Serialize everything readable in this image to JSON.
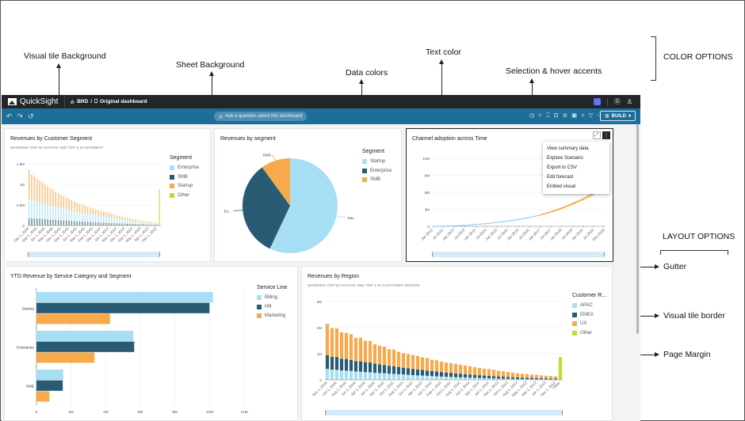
{
  "annotations": {
    "visual_tile_background": "Visual tile Background",
    "sheet_background": "Sheet Background",
    "data_colors": "Data colors",
    "text_color": "Text color",
    "selection_hover": "Selection & hover accents",
    "color_options": "COLOR OPTIONS",
    "layout_options": "LAYOUT OPTIONS",
    "gutter": "Gutter",
    "visual_tile_border": "Visual tile border",
    "page_margin": "Page Margin"
  },
  "app": {
    "name": "QuickSight",
    "breadcrumb_folder": "BRD",
    "breadcrumb_sep": "/",
    "dashboard_name": "Original dashboard",
    "ask_placeholder": "Ask a question about this dashboard",
    "build_label": "BUILD",
    "toolbar_icons": [
      "schedule-icon",
      "branch-icon",
      "bookmark-icon",
      "download-icon",
      "dataset-icon",
      "save-icon",
      "share-icon",
      "filter-icon",
      "alert-icon"
    ],
    "colors": {
      "topbar": "#232629",
      "toolbar": "#1d6f99",
      "accent": "#1d6f99"
    }
  },
  "tiles": {
    "segment_bar": {
      "title": "Revenues by Customer Segment",
      "subtitle": "SHOWING TOP 50 IN DATE AND TOP 4 IN SEGMENT",
      "legend_title": "Segment",
      "legend": [
        {
          "label": "Enterprise",
          "color": "#a6dff4"
        },
        {
          "label": "SMB",
          "color": "#2a5b74"
        },
        {
          "label": "Startup",
          "color": "#f7a94b"
        },
        {
          "label": "Other",
          "color": "#b6df2c"
        }
      ],
      "y_ticks": [
        "0",
        "0.5M",
        "1M",
        "1.5M"
      ],
      "x_labels": [
        "Dec 1, 2016",
        "Sep 1, 2016",
        "Jun 1, 2016",
        "Mar 1, 2016",
        "Dec 1, 2015",
        "Sep 1, 2015",
        "Jun 1, 2015",
        "Mar 1, 2015",
        "Feb 1, 2015",
        "Sep 1, 2014",
        "Jun 1, 2014",
        "Mar 1, 2014",
        "Dec 1, 2013",
        "Sep 1, 2013",
        "May 1, 2013",
        "Apr 1, 2013",
        "Dec 1, 2012"
      ]
    },
    "segment_pie": {
      "title": "Revenues by segment",
      "legend_title": "Segment",
      "legend": [
        {
          "label": "Startup",
          "color": "#a6dff4"
        },
        {
          "label": "Enterprise",
          "color": "#2a5b74"
        },
        {
          "label": "SMB",
          "color": "#f7a94b"
        }
      ],
      "slice_labels": [
        "Sta...",
        "En...",
        "SMB"
      ]
    },
    "channel_line": {
      "title": "Channel adoption across Time",
      "y_ticks": [
        "0",
        "3M",
        "6M",
        "9M",
        "12M"
      ],
      "x_labels": [
        "Jan 2012",
        "Jul 2012",
        "Jan 2013",
        "Jul 2013",
        "Jan 2014",
        "Jul 2014",
        "Jan 2015",
        "Jul 2015",
        "Jan 2016",
        "Jul 2016",
        "Jan 2017",
        "Jul 2017",
        "Jan 2018",
        "Jul 2018",
        "Jan 2019",
        "Jul 2019",
        "Dec 2019"
      ],
      "menu": [
        "View summary data",
        "Explore Scenario",
        "Export to CSV",
        "Edit forecast",
        "Embed visual"
      ]
    },
    "ytd_bar": {
      "title": "YTD Revenue by Service Category and Segment",
      "legend_title": "Service Line",
      "legend": [
        {
          "label": "Billing",
          "color": "#a6dff4"
        },
        {
          "label": "HR",
          "color": "#2a5b74"
        },
        {
          "label": "Marketing",
          "color": "#f7a94b"
        }
      ],
      "x_ticks": [
        "0",
        "2M",
        "4M",
        "6M",
        "8M",
        "10M",
        "12M"
      ]
    },
    "region_bar": {
      "title": "Revenues by Region",
      "subtitle": "SHOWING TOP 50 IN DATE AND TOP 4 IN CUSTOMER REGION",
      "legend_title": "Customer R...",
      "legend": [
        {
          "label": "APAC",
          "color": "#a6dff4"
        },
        {
          "label": "EMEA",
          "color": "#2a5b74"
        },
        {
          "label": "US",
          "color": "#f7a94b"
        },
        {
          "label": "Other",
          "color": "#b6df2c"
        }
      ],
      "y_ticks": [
        "0",
        "1M",
        "2M",
        "3M"
      ],
      "x_labels": [
        "Dec 1, 2016",
        "Oct 1, 2016",
        "Aug 1, 2016",
        "Jun 1, 2016",
        "Apr 1, 2016",
        "Jan 1, 2016",
        "Dec 1, 2015",
        "Oct 1, 2015",
        "Aug 1, 2015",
        "Jun 1, 2015",
        "Apr 1, 2015",
        "Jan 1, 2015",
        "Feb 1, 2015",
        "Oct 1, 2014",
        "Aug 1, 2014",
        "Jun 1, 2014",
        "Apr 1, 2014",
        "Jan 1, 2014",
        "Dec 1, 2013",
        "Oct 1, 2013",
        "Aug 1, 2013",
        "May 1, 2013",
        "Mar 1, 2013",
        "Jan 1, 2013",
        "Dec 1, 2012",
        "Other"
      ]
    }
  },
  "chart_data": [
    {
      "type": "bar",
      "title": "Revenues by Customer Segment",
      "stacked": true,
      "ylim": [
        0,
        1500000
      ],
      "series": [
        {
          "name": "SMB",
          "values": [
            180000,
            175000,
            172000,
            168000,
            165000,
            160000,
            155000,
            150000,
            145000,
            140000,
            136000,
            132000,
            128000,
            124000,
            120000,
            116000,
            112000,
            108000,
            104000,
            100000,
            96000,
            92000,
            88000,
            85000,
            82000,
            79000,
            76000,
            73000,
            70000,
            67000,
            64000,
            61000,
            58000,
            55000,
            52000,
            49000,
            46000,
            43000,
            40000,
            37000,
            35000,
            33000,
            31000,
            29000,
            27000,
            25000,
            23000,
            21000,
            19000,
            0
          ]
        },
        {
          "name": "Enterprise",
          "values": [
            450000,
            430000,
            420000,
            410000,
            400000,
            390000,
            370000,
            355000,
            345000,
            330000,
            315000,
            300000,
            290000,
            280000,
            270000,
            260000,
            250000,
            240000,
            232000,
            224000,
            216000,
            208000,
            200000,
            192000,
            184000,
            176000,
            168000,
            160000,
            152000,
            144000,
            136000,
            128000,
            120000,
            112000,
            104000,
            96000,
            88000,
            80000,
            72000,
            66000,
            60000,
            55000,
            50000,
            46000,
            42000,
            38000,
            34000,
            30000,
            27000,
            0
          ]
        },
        {
          "name": "Startup",
          "values": [
            720000,
            630000,
            610000,
            560000,
            540000,
            510000,
            470000,
            460000,
            420000,
            410000,
            370000,
            350000,
            330000,
            310000,
            290000,
            270000,
            250000,
            235000,
            220000,
            206000,
            194000,
            182000,
            172000,
            162000,
            152000,
            143000,
            134000,
            126000,
            118000,
            110000,
            103000,
            96000,
            89000,
            83000,
            77000,
            72000,
            66000,
            61000,
            56000,
            52000,
            48000,
            44000,
            40000,
            37000,
            34000,
            31000,
            28000,
            25000,
            22000,
            0
          ]
        },
        {
          "name": "Other",
          "values": [
            0,
            0,
            0,
            0,
            0,
            0,
            0,
            0,
            0,
            0,
            0,
            0,
            0,
            0,
            0,
            0,
            0,
            0,
            0,
            0,
            0,
            0,
            0,
            0,
            0,
            0,
            0,
            0,
            0,
            0,
            0,
            0,
            0,
            0,
            0,
            0,
            0,
            0,
            0,
            0,
            0,
            0,
            0,
            0,
            0,
            0,
            0,
            0,
            0,
            880000
          ]
        }
      ]
    },
    {
      "type": "pie",
      "title": "Revenues by segment",
      "categories": [
        "Startup",
        "Enterprise",
        "SMB"
      ],
      "values": [
        57,
        33,
        10
      ]
    },
    {
      "type": "line",
      "title": "Channel adoption across Time",
      "ylim": [
        0,
        12000000
      ],
      "x": [
        "Jan 2012",
        "Jul 2012",
        "Jan 2013",
        "Jul 2013",
        "Jan 2014",
        "Jul 2014",
        "Jan 2015",
        "Jul 2015",
        "Jan 2016",
        "Jul 2016",
        "Jan 2017",
        "Jul 2017",
        "Jan 2018",
        "Jul 2018",
        "Jan 2019",
        "Jul 2019",
        "Dec 2019"
      ],
      "series": [
        {
          "name": "Actual",
          "values": [
            0,
            20000,
            80000,
            180000,
            320000,
            480000,
            680000,
            920000,
            1200000,
            1550000,
            2000000,
            null,
            null,
            null,
            null,
            null,
            null
          ]
        },
        {
          "name": "Forecast",
          "values": [
            null,
            null,
            null,
            null,
            null,
            null,
            null,
            null,
            null,
            null,
            2000000,
            2550000,
            3200000,
            3950000,
            4800000,
            5800000,
            6900000
          ]
        }
      ]
    },
    {
      "type": "bar",
      "orientation": "horizontal",
      "title": "YTD Revenue by Service Category and Segment",
      "categories": [
        "Startup",
        "Enterprise",
        "SMB"
      ],
      "xlim": [
        0,
        12000000
      ],
      "series": [
        {
          "name": "Billing",
          "values": [
            10200000,
            5600000,
            1550000
          ]
        },
        {
          "name": "HR",
          "values": [
            10000000,
            5650000,
            1520000
          ]
        },
        {
          "name": "Marketing",
          "values": [
            4250000,
            3350000,
            750000
          ]
        }
      ]
    },
    {
      "type": "bar",
      "title": "Revenues by Region",
      "stacked": true,
      "ylim": [
        0,
        3000000
      ],
      "series": [
        {
          "name": "APAC",
          "values": [
            420000,
            390000,
            385000,
            360000,
            350000,
            340000,
            320000,
            310000,
            295000,
            290000,
            270000,
            260000,
            250000,
            235000,
            225000,
            215000,
            205000,
            195000,
            180000,
            170000,
            165000,
            155000,
            145000,
            135000,
            125000,
            115000,
            110000,
            100000,
            95000,
            88000,
            82000,
            76000,
            70000,
            64000,
            58000,
            52000,
            48000,
            44000,
            40000,
            36000,
            33000,
            30000,
            28000,
            26000,
            24000,
            22000,
            20000,
            18000,
            15000,
            0
          ]
        },
        {
          "name": "EMEA",
          "values": [
            530000,
            490000,
            490000,
            450000,
            450000,
            420000,
            400000,
            400000,
            380000,
            380000,
            350000,
            330000,
            320000,
            300000,
            300000,
            280000,
            260000,
            255000,
            240000,
            225000,
            215000,
            200000,
            195000,
            185000,
            175000,
            165000,
            160000,
            150000,
            140000,
            130000,
            122000,
            115000,
            108000,
            100000,
            94000,
            88000,
            82000,
            76000,
            70000,
            65000,
            60000,
            56000,
            52000,
            48000,
            45000,
            42000,
            39000,
            36000,
            30000,
            0
          ]
        },
        {
          "name": "US",
          "values": [
            1200000,
            1100000,
            1100000,
            1010000,
            1000000,
            990000,
            890000,
            900000,
            820000,
            820000,
            740000,
            720000,
            700000,
            640000,
            640000,
            580000,
            560000,
            540000,
            530000,
            520000,
            480000,
            480000,
            430000,
            430000,
            400000,
            380000,
            370000,
            360000,
            345000,
            330000,
            316000,
            296000,
            282000,
            260000,
            258000,
            250000,
            220000,
            210000,
            190000,
            180000,
            157000,
            144000,
            140000,
            126000,
            121000,
            106000,
            101000,
            96000,
            85000,
            0
          ]
        },
        {
          "name": "Other",
          "values": [
            0,
            0,
            0,
            0,
            0,
            0,
            0,
            0,
            0,
            0,
            0,
            0,
            0,
            0,
            0,
            0,
            0,
            0,
            0,
            0,
            0,
            0,
            0,
            0,
            0,
            0,
            0,
            0,
            0,
            0,
            0,
            0,
            0,
            0,
            0,
            0,
            0,
            0,
            0,
            0,
            0,
            0,
            0,
            0,
            0,
            0,
            0,
            0,
            0,
            870000
          ]
        }
      ]
    }
  ]
}
